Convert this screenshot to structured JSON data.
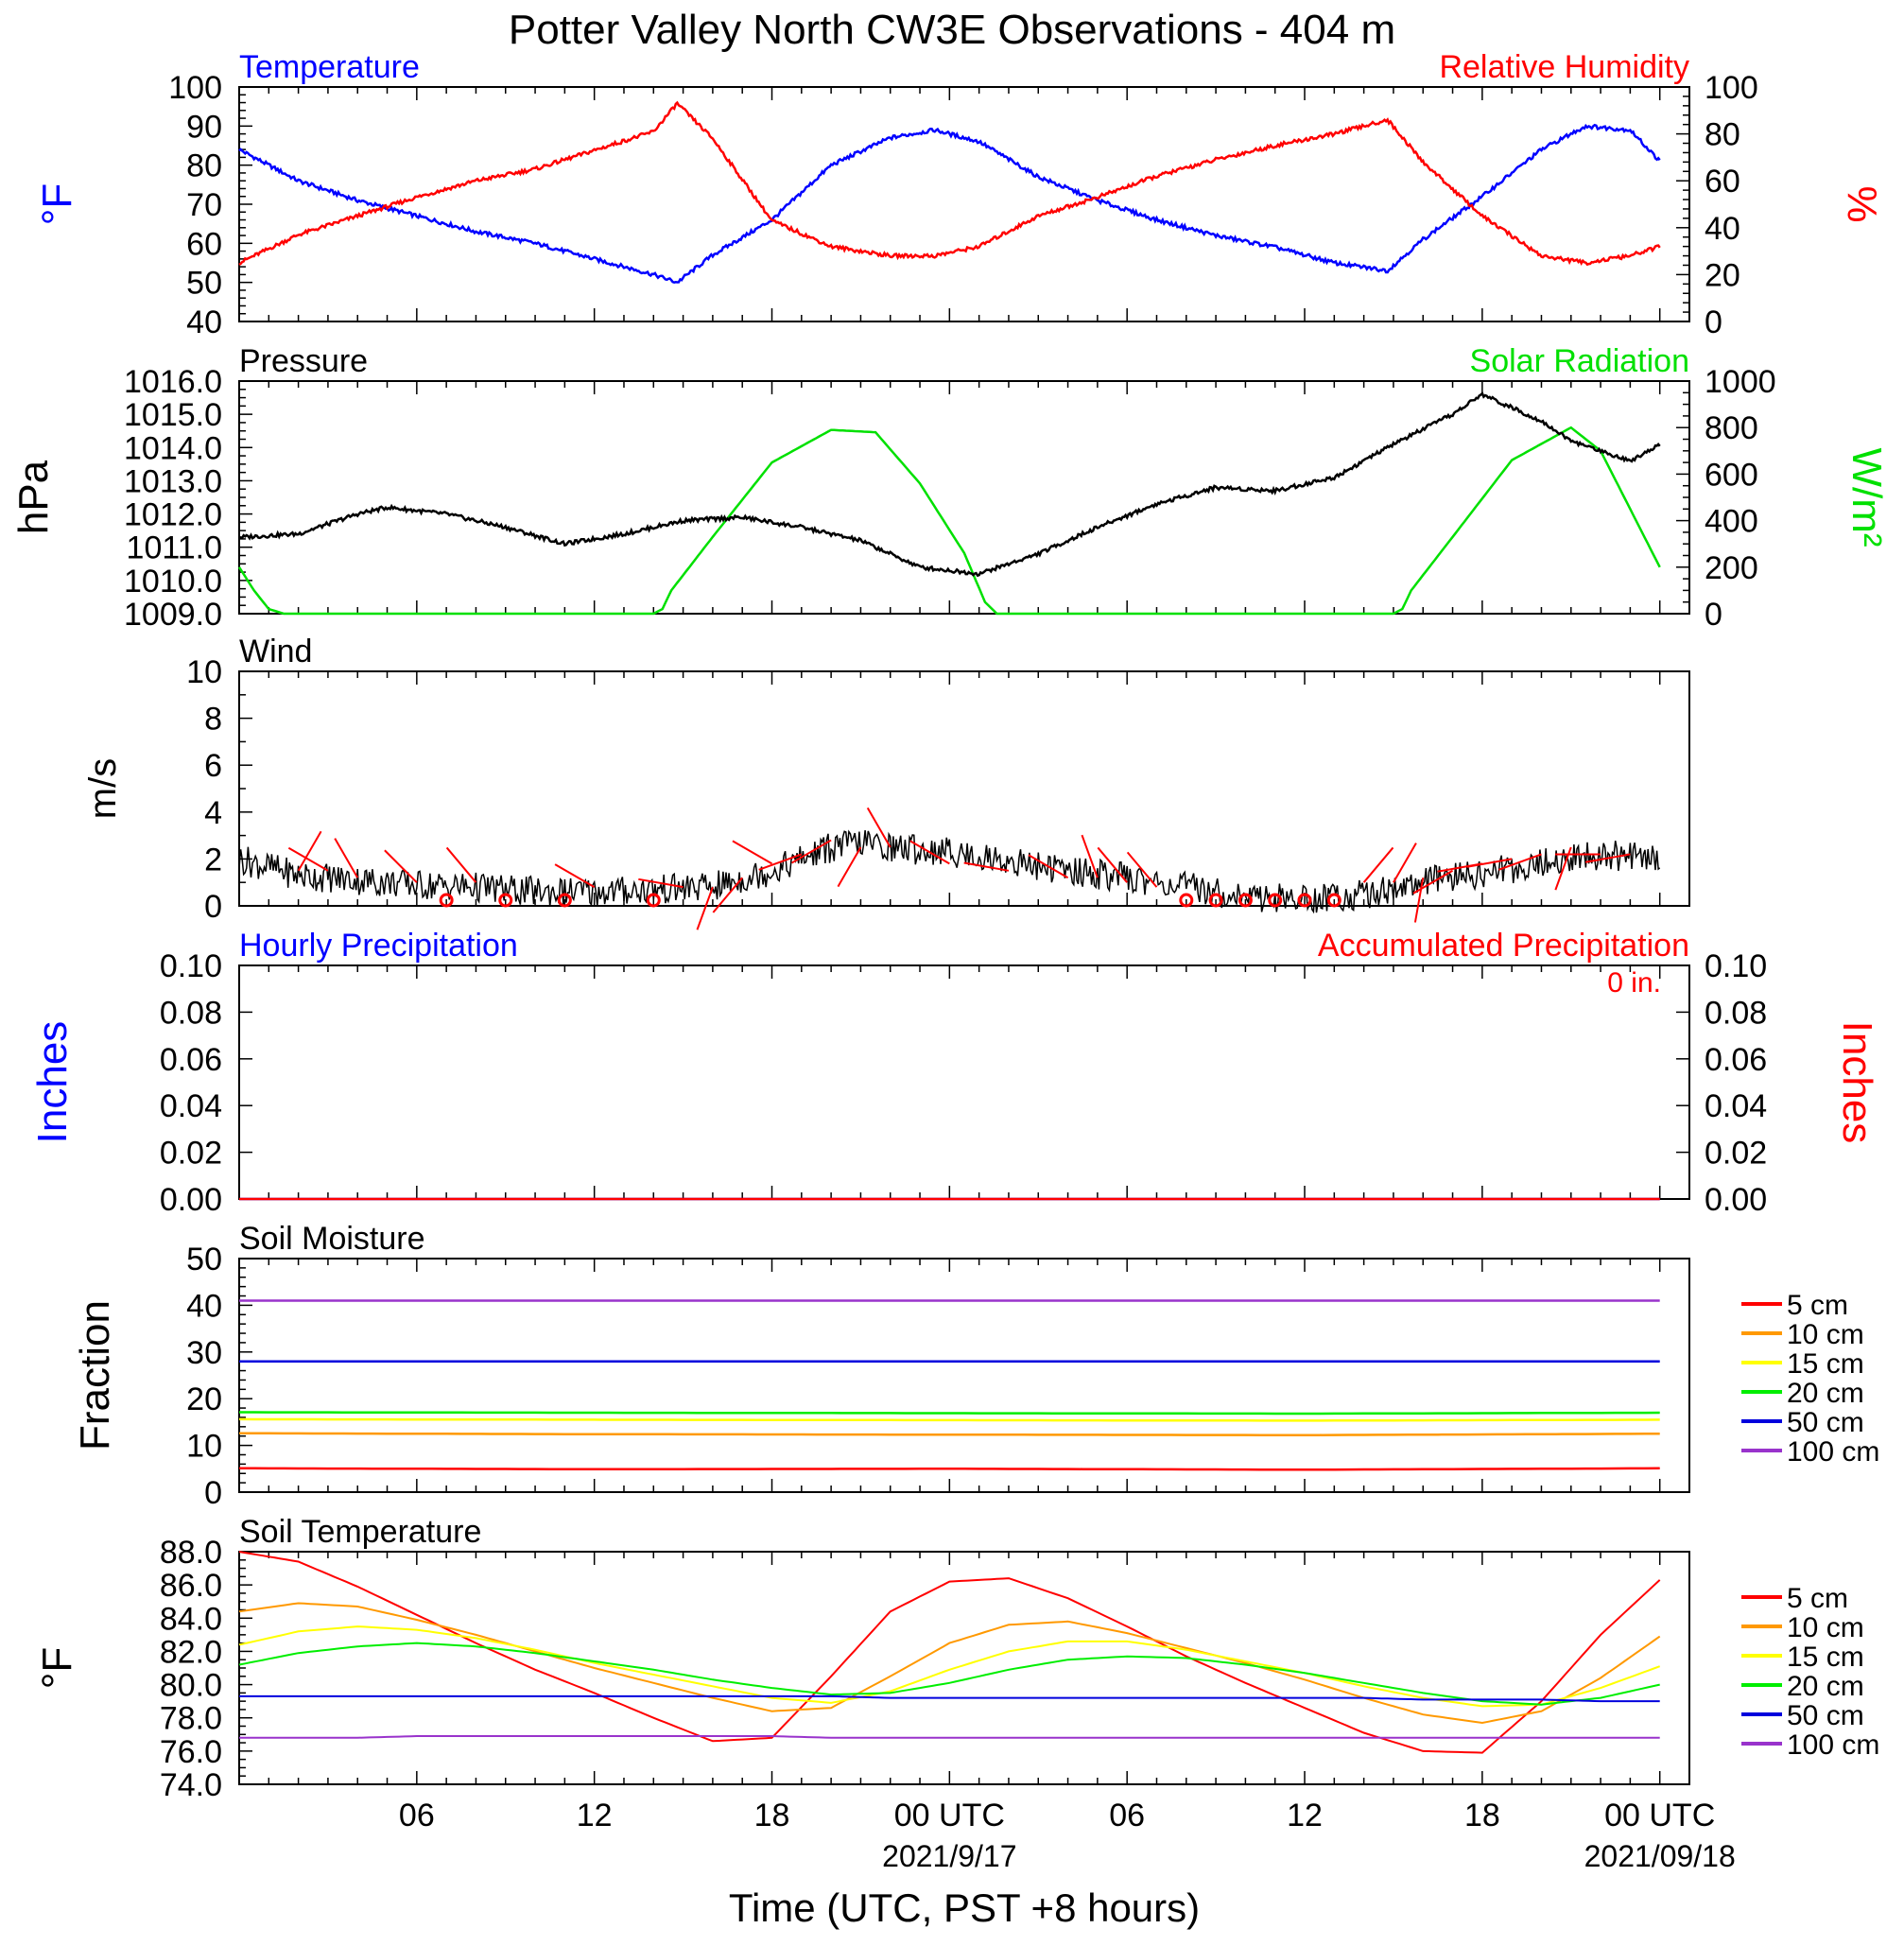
{
  "title": "Potter Valley North CW3E Observations - 404 m",
  "xlabel": "Time (UTC, PST +8 hours)",
  "x_ticks": [
    {
      "t": 6,
      "label": "06",
      "date": ""
    },
    {
      "t": 12,
      "label": "12",
      "date": ""
    },
    {
      "t": 18,
      "label": "18",
      "date": ""
    },
    {
      "t": 24,
      "label": "00 UTC",
      "date": "2021/9/17"
    },
    {
      "t": 30,
      "label": "06",
      "date": ""
    },
    {
      "t": 36,
      "label": "12",
      "date": ""
    },
    {
      "t": 42,
      "label": "18",
      "date": ""
    },
    {
      "t": 48,
      "label": "00 UTC",
      "date": "2021/09/18"
    }
  ],
  "colors": {
    "temperature": "#0000ff",
    "humidity": "#ff0000",
    "pressure": "#000000",
    "solar": "#00e000",
    "wind": "#000000",
    "barb": "#ff0000"
  },
  "depth_legend": [
    {
      "name": "5 cm",
      "color": "#ff0000"
    },
    {
      "name": "10 cm",
      "color": "#ff9900"
    },
    {
      "name": "15 cm",
      "color": "#ffff00"
    },
    {
      "name": "20 cm",
      "color": "#00ee00"
    },
    {
      "name": "50 cm",
      "color": "#0000dd"
    },
    {
      "name": "100 cm",
      "color": "#9933cc"
    }
  ],
  "chart_data": [
    {
      "type": "line",
      "title": "",
      "left_label": "Temperature",
      "right_label": "Relative Humidity",
      "ylabel_left": "°F",
      "ylabel_right": "%",
      "ylim_left": [
        40,
        100
      ],
      "ylim_right": [
        0,
        100
      ],
      "yticks_left": [
        "40",
        "50",
        "60",
        "70",
        "80",
        "90",
        "100"
      ],
      "yticks_right": [
        "0",
        "20",
        "40",
        "60",
        "80",
        "100"
      ],
      "x": [
        0,
        2,
        4,
        6,
        8,
        10,
        12,
        14,
        14.8,
        16,
        18,
        20,
        22,
        23.5,
        25,
        27,
        29,
        31,
        33,
        35,
        37,
        38.8,
        40,
        42,
        44,
        45.5,
        47,
        48
      ],
      "series": [
        {
          "name": "Temperature",
          "color": "#0000ff",
          "axis": "left",
          "values": [
            84,
            76,
            71,
            67,
            63,
            60,
            56,
            52,
            50,
            57,
            66,
            80,
            87,
            89,
            86,
            77,
            71,
            66,
            62,
            59,
            55,
            53,
            61,
            72,
            84,
            90,
            89,
            81
          ]
        },
        {
          "name": "Relative Humidity",
          "color": "#ff0000",
          "axis": "right",
          "values": [
            25,
            37,
            45,
            53,
            60,
            65,
            73,
            81,
            93,
            78,
            43,
            32,
            28,
            28,
            32,
            45,
            53,
            62,
            69,
            75,
            80,
            86,
            68,
            45,
            28,
            25,
            28,
            32
          ]
        }
      ]
    },
    {
      "type": "line",
      "title": "",
      "left_label": "Pressure",
      "right_label": "Solar Radiation",
      "ylabel_left": "hPa",
      "ylabel_right": "W/m²",
      "ylim_left": [
        1009,
        1016
      ],
      "ylim_right": [
        0,
        1000
      ],
      "yticks_left": [
        "1009.0",
        "1010.0",
        "1011.0",
        "1012.0",
        "1013.0",
        "1014.0",
        "1015.0",
        "1016.0"
      ],
      "yticks_right": [
        "0",
        "200",
        "400",
        "600",
        "800",
        "1000"
      ],
      "series": [
        {
          "name": "Pressure",
          "color": "#000000",
          "axis": "left",
          "x": [
            0,
            2,
            4,
            5,
            7,
            9,
            11,
            13,
            15,
            17,
            19,
            21,
            23,
            25,
            27,
            29,
            31,
            33,
            35,
            37,
            39,
            41,
            42,
            44,
            45,
            47,
            48
          ],
          "values": [
            1011.3,
            1011.4,
            1012.0,
            1012.2,
            1012.0,
            1011.6,
            1011.1,
            1011.4,
            1011.8,
            1011.9,
            1011.6,
            1011.2,
            1010.4,
            1010.2,
            1010.8,
            1011.6,
            1012.3,
            1012.8,
            1012.7,
            1013.1,
            1014.1,
            1015.0,
            1015.6,
            1014.8,
            1014.2,
            1013.6,
            1014.1
          ]
        },
        {
          "name": "Solar Radiation",
          "color": "#00e000",
          "axis": "right",
          "x": [
            0,
            0.5,
            1,
            1.5,
            14,
            14.3,
            14.6,
            16,
            18,
            20,
            21.5,
            23,
            24.5,
            25.2,
            25.6,
            39,
            39.3,
            39.6,
            41,
            43,
            45,
            46,
            48
          ],
          "values": [
            200,
            100,
            20,
            0,
            0,
            20,
            100,
            330,
            650,
            790,
            780,
            560,
            260,
            50,
            0,
            0,
            20,
            100,
            330,
            660,
            800,
            700,
            200
          ]
        }
      ]
    },
    {
      "type": "line",
      "title": "Wind",
      "ylabel": "m/s",
      "ylim": [
        0,
        10
      ],
      "yticks": [
        "0",
        "2",
        "4",
        "6",
        "8",
        "10"
      ],
      "series": [
        {
          "name": "Wind speed",
          "color": "#000000",
          "x": [
            0,
            2,
            4,
            6,
            8,
            10,
            12,
            14,
            16,
            18,
            19,
            20,
            21,
            22,
            24,
            26,
            28,
            30,
            32,
            34,
            36,
            37,
            38,
            40,
            42,
            44,
            46,
            48
          ],
          "values": [
            2.0,
            1.3,
            1.1,
            0.9,
            0.8,
            0.6,
            0.6,
            0.7,
            0.8,
            1.5,
            2.0,
            2.5,
            2.7,
            2.5,
            2.3,
            1.9,
            1.5,
            1.2,
            0.8,
            0.4,
            0.3,
            0.4,
            0.5,
            1.0,
            1.4,
            1.8,
            2.2,
            2.0
          ]
        }
      ],
      "barbs": [
        {
          "t": 2,
          "dir": 30,
          "speed": 1.5
        },
        {
          "t": 3,
          "dir": 300,
          "speed": 1.5
        },
        {
          "t": 4,
          "dir": 330,
          "speed": 1.2
        },
        {
          "t": 6,
          "dir": 315,
          "speed": 1.0
        },
        {
          "t": 7,
          "calm": true
        },
        {
          "t": 8,
          "dir": 320,
          "speed": 1.0
        },
        {
          "t": 9,
          "calm": true
        },
        {
          "t": 11,
          "calm": true
        },
        {
          "t": 12,
          "dir": 300,
          "speed": 0.8
        },
        {
          "t": 14,
          "calm": true
        },
        {
          "t": 15,
          "dir": 280,
          "speed": 0.8
        },
        {
          "t": 16,
          "dir": 200,
          "speed": 0.8
        },
        {
          "t": 17,
          "dir": 220,
          "speed": 1.2
        },
        {
          "t": 18,
          "dir": 300,
          "speed": 1.8
        },
        {
          "t": 19,
          "dir": 250,
          "speed": 2.2
        },
        {
          "t": 20,
          "dir": 240,
          "speed": 2.8
        },
        {
          "t": 21,
          "dir": 210,
          "speed": 2.5
        },
        {
          "t": 22,
          "dir": 330,
          "speed": 2.5
        },
        {
          "t": 24,
          "dir": 300,
          "speed": 1.8
        },
        {
          "t": 26,
          "dir": 280,
          "speed": 1.5
        },
        {
          "t": 28,
          "dir": 300,
          "speed": 1.2
        },
        {
          "t": 29,
          "dir": 340,
          "speed": 1.2
        },
        {
          "t": 30,
          "dir": 320,
          "speed": 1.0
        },
        {
          "t": 31,
          "dir": 320,
          "speed": 0.8
        },
        {
          "t": 32,
          "calm": true
        },
        {
          "t": 33,
          "calm": true
        },
        {
          "t": 34,
          "calm": true
        },
        {
          "t": 35,
          "calm": true
        },
        {
          "t": 36,
          "calm": true
        },
        {
          "t": 37,
          "calm": true
        },
        {
          "t": 38,
          "dir": 40,
          "speed": 1.0
        },
        {
          "t": 39,
          "dir": 30,
          "speed": 1.0
        },
        {
          "t": 40,
          "dir": 190,
          "speed": 1.2
        },
        {
          "t": 41,
          "dir": 240,
          "speed": 1.5
        },
        {
          "t": 42,
          "dir": 260,
          "speed": 1.8
        },
        {
          "t": 43,
          "dir": 260,
          "speed": 2.0
        },
        {
          "t": 44,
          "dir": 250,
          "speed": 2.2
        },
        {
          "t": 45,
          "dir": 200,
          "speed": 2.5
        },
        {
          "t": 46,
          "dir": 270,
          "speed": 2.2
        },
        {
          "t": 47,
          "dir": 260,
          "speed": 2.2
        }
      ]
    },
    {
      "type": "line",
      "left_label": "Hourly Precipitation",
      "right_label": "Accumulated Precipitation",
      "annotation": "0 in.",
      "ylabel_left": "Inches",
      "ylabel_right": "Inches",
      "ylim_left": [
        0,
        0.1
      ],
      "ylim_right": [
        0,
        0.1
      ],
      "yticks_left": [
        "0.00",
        "0.02",
        "0.04",
        "0.06",
        "0.08",
        "0.10"
      ],
      "yticks_right": [
        "0.00",
        "0.02",
        "0.04",
        "0.06",
        "0.08",
        "0.10"
      ],
      "series": [
        {
          "name": "Hourly Precipitation",
          "color": "#0000ff",
          "x": [
            0,
            48
          ],
          "values": [
            0,
            0
          ]
        },
        {
          "name": "Accumulated Precipitation",
          "color": "#ff0000",
          "x": [
            0,
            48
          ],
          "values": [
            0,
            0
          ]
        }
      ]
    },
    {
      "type": "line",
      "title": "Soil Moisture",
      "ylabel": "Fraction",
      "ylim": [
        0,
        50
      ],
      "yticks": [
        "0",
        "10",
        "20",
        "30",
        "40",
        "50"
      ],
      "x": [
        0,
        12,
        24,
        36,
        48
      ],
      "series": [
        {
          "name": "5 cm",
          "color": "#ff0000",
          "values": [
            5.1,
            4.9,
            5.0,
            4.8,
            5.1
          ]
        },
        {
          "name": "10 cm",
          "color": "#ff9900",
          "values": [
            12.6,
            12.4,
            12.3,
            12.2,
            12.5
          ]
        },
        {
          "name": "15 cm",
          "color": "#ffff00",
          "values": [
            15.6,
            15.5,
            15.4,
            15.3,
            15.5
          ]
        },
        {
          "name": "20 cm",
          "color": "#00ee00",
          "values": [
            17.1,
            17.0,
            16.9,
            16.8,
            17.0
          ]
        },
        {
          "name": "50 cm",
          "color": "#0000dd",
          "values": [
            28.0,
            28.0,
            28.0,
            28.0,
            28.0
          ]
        },
        {
          "name": "100 cm",
          "color": "#9933cc",
          "values": [
            41.0,
            41.0,
            41.0,
            41.0,
            41.0
          ]
        }
      ]
    },
    {
      "type": "line",
      "title": "Soil Temperature",
      "ylabel": "°F",
      "ylim": [
        74,
        88
      ],
      "yticks": [
        "74.0",
        "76.0",
        "78.0",
        "80.0",
        "82.0",
        "84.0",
        "86.0",
        "88.0"
      ],
      "x": [
        0,
        2,
        4,
        6,
        8,
        10,
        12,
        14,
        16,
        18,
        20,
        22,
        24,
        26,
        28,
        30,
        32,
        34,
        36,
        38,
        40,
        42,
        44,
        46,
        48
      ],
      "series": [
        {
          "name": "5 cm",
          "color": "#ff0000",
          "values": [
            88.0,
            87.4,
            85.9,
            84.2,
            82.5,
            80.9,
            79.5,
            78.0,
            76.6,
            76.8,
            80.5,
            84.4,
            86.2,
            86.4,
            85.2,
            83.5,
            81.7,
            80.1,
            78.6,
            77.1,
            76.0,
            75.9,
            79.0,
            83.0,
            86.3
          ]
        },
        {
          "name": "10 cm",
          "color": "#ff9900",
          "values": [
            84.4,
            84.9,
            84.7,
            83.9,
            83.0,
            82.0,
            81.0,
            80.1,
            79.2,
            78.4,
            78.6,
            80.5,
            82.5,
            83.6,
            83.8,
            83.1,
            82.2,
            81.3,
            80.3,
            79.2,
            78.2,
            77.7,
            78.4,
            80.4,
            82.9
          ]
        },
        {
          "name": "15 cm",
          "color": "#ffff00",
          "values": [
            82.4,
            83.2,
            83.5,
            83.3,
            82.8,
            82.1,
            81.3,
            80.6,
            79.9,
            79.2,
            78.9,
            79.6,
            80.9,
            82.0,
            82.6,
            82.6,
            82.1,
            81.4,
            80.7,
            79.9,
            79.2,
            78.7,
            78.8,
            79.8,
            81.1
          ]
        },
        {
          "name": "20 cm",
          "color": "#00ee00",
          "values": [
            81.2,
            81.9,
            82.3,
            82.5,
            82.3,
            81.9,
            81.4,
            80.9,
            80.3,
            79.8,
            79.4,
            79.5,
            80.1,
            80.9,
            81.5,
            81.7,
            81.6,
            81.2,
            80.7,
            80.1,
            79.5,
            79.0,
            78.8,
            79.2,
            80.0
          ]
        },
        {
          "name": "50 cm",
          "color": "#0000dd",
          "values": [
            79.3,
            79.3,
            79.3,
            79.3,
            79.3,
            79.3,
            79.3,
            79.3,
            79.3,
            79.3,
            79.3,
            79.2,
            79.2,
            79.2,
            79.2,
            79.2,
            79.2,
            79.2,
            79.2,
            79.2,
            79.1,
            79.1,
            79.1,
            79.0,
            79.0
          ]
        },
        {
          "name": "100 cm",
          "color": "#9933cc",
          "values": [
            76.8,
            76.8,
            76.8,
            76.9,
            76.9,
            76.9,
            76.9,
            76.9,
            76.9,
            76.9,
            76.8,
            76.8,
            76.8,
            76.8,
            76.8,
            76.8,
            76.8,
            76.8,
            76.8,
            76.8,
            76.8,
            76.8,
            76.8,
            76.8,
            76.8
          ]
        }
      ]
    }
  ]
}
